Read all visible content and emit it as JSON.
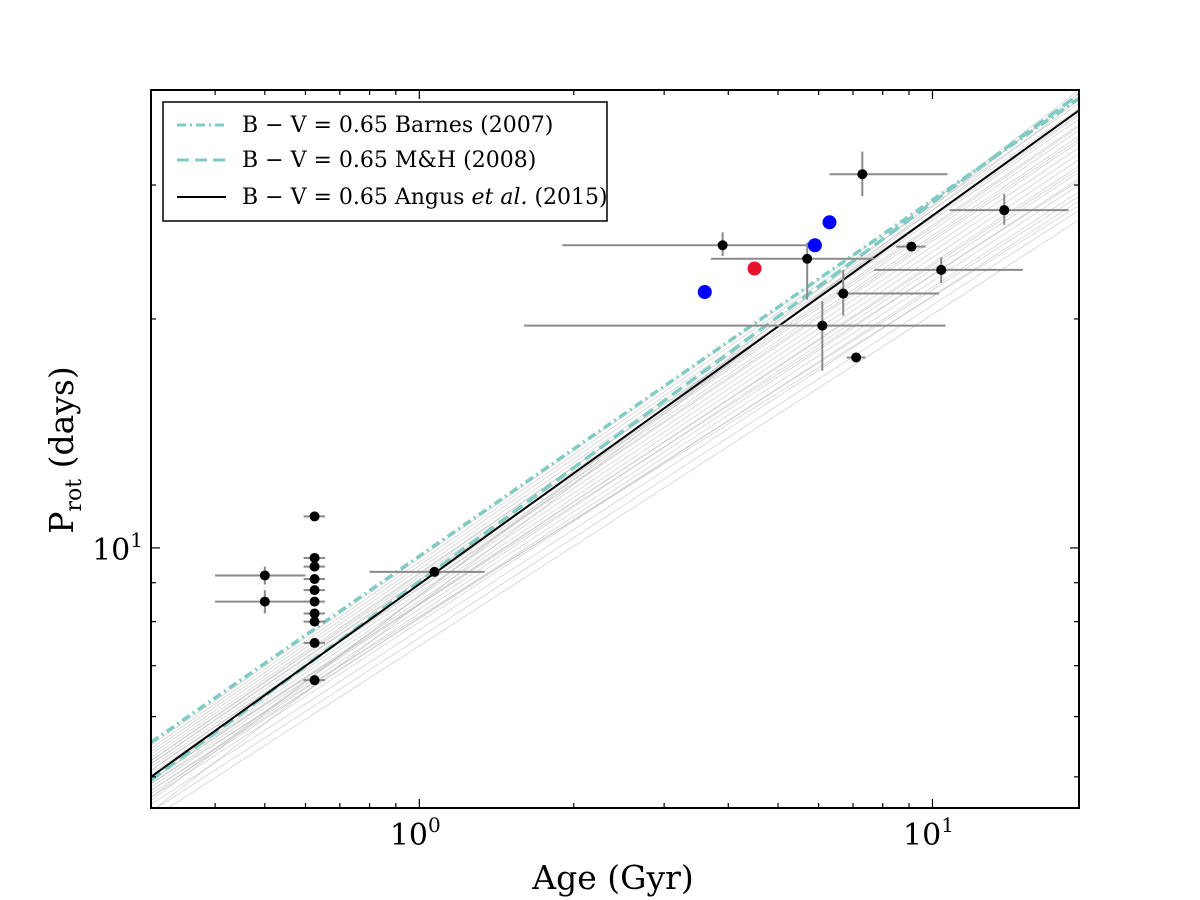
{
  "chart_data": {
    "type": "scatter",
    "title": "",
    "xlabel": "Age (Gyr)",
    "ylabel_main": "P",
    "ylabel_sub": "rot",
    "ylabel_tail": " (days)",
    "xscale": "log",
    "yscale": "log",
    "xlim": [
      0.3,
      19.3
    ],
    "ylim": [
      4.55,
      40.0
    ],
    "x_ticks": [
      {
        "value": 1,
        "base": "10",
        "exp": "0"
      },
      {
        "value": 10,
        "base": "10",
        "exp": "1"
      }
    ],
    "y_ticks": [
      {
        "value": 10,
        "base": "10",
        "exp": "1"
      }
    ],
    "grid": false,
    "legend": {
      "placement": "top-left",
      "entries": [
        {
          "text": "B − V = 0.65 Barnes (2007)",
          "style": "dashdot",
          "color": "#80cbc4"
        },
        {
          "text": "B − V = 0.65 M&H (2008)",
          "style": "dashed",
          "color": "#80cbc4"
        },
        {
          "text_pre": "B − V = 0.65 Angus ",
          "text_italic": "et al.",
          "text_post": " (2015)",
          "style": "solid",
          "color": "#000000"
        }
      ]
    },
    "lines": [
      {
        "name": "B − V = 0.65 Barnes (2007)",
        "style": "dashdot",
        "color": "#80cbc4",
        "points": [
          [
            0.3,
            5.55
          ],
          [
            19.3,
            39.0
          ]
        ]
      },
      {
        "name": "B − V = 0.65 M&H (2008)",
        "style": "dashed",
        "color": "#80cbc4",
        "points": [
          [
            0.3,
            4.95
          ],
          [
            19.3,
            39.5
          ]
        ]
      },
      {
        "name": "B − V = 0.65 Angus et al. (2015)",
        "style": "solid",
        "color": "#000000",
        "points": [
          [
            0.3,
            5.0
          ],
          [
            19.3,
            37.6
          ]
        ]
      }
    ],
    "sample_lines": {
      "color": "#b0b0b0",
      "x_range": [
        0.3,
        19.3
      ],
      "start_values": [
        4.4,
        4.5,
        4.6,
        4.7,
        4.75,
        4.8,
        4.85,
        4.9,
        4.95,
        5.0,
        5.05,
        5.1,
        5.15,
        5.2,
        5.25,
        5.3,
        5.35,
        5.4,
        5.45,
        5.5,
        4.5,
        4.65,
        4.8,
        4.95,
        5.1,
        5.25,
        4.7,
        4.9,
        5.0,
        5.2
      ],
      "end_values": [
        27.0,
        27.8,
        28.6,
        29.4,
        30.0,
        30.6,
        31.2,
        31.8,
        32.4,
        33.0,
        33.6,
        34.2,
        34.8,
        35.4,
        36.0,
        36.6,
        37.2,
        37.8,
        38.4,
        39.0,
        39.6,
        40.0,
        29.0,
        31.5,
        34.5,
        37.0,
        38.8,
        28.2,
        30.4,
        35.8
      ]
    },
    "points": [
      {
        "x": 0.5,
        "y": 9.2,
        "xerr": [
          0.1,
          0.1
        ],
        "yerr": [
          0.25,
          0.25
        ],
        "color": "#000000"
      },
      {
        "x": 0.5,
        "y": 8.5,
        "xerr": [
          0.1,
          0.1
        ],
        "yerr": [
          0.3,
          0.3
        ],
        "color": "#000000"
      },
      {
        "x": 0.625,
        "y": 11.0,
        "xerr": [
          0.03,
          0.03
        ],
        "yerr": [
          0,
          0
        ],
        "color": "#000000"
      },
      {
        "x": 0.625,
        "y": 9.7,
        "xerr": [
          0.03,
          0.03
        ],
        "yerr": [
          0,
          0
        ],
        "color": "#000000"
      },
      {
        "x": 0.625,
        "y": 9.45,
        "xerr": [
          0.03,
          0.03
        ],
        "yerr": [
          0,
          0
        ],
        "color": "#000000"
      },
      {
        "x": 0.625,
        "y": 9.1,
        "xerr": [
          0.03,
          0.03
        ],
        "yerr": [
          0,
          0
        ],
        "color": "#000000"
      },
      {
        "x": 0.625,
        "y": 8.8,
        "xerr": [
          0.03,
          0.03
        ],
        "yerr": [
          0,
          0
        ],
        "color": "#000000"
      },
      {
        "x": 0.625,
        "y": 8.5,
        "xerr": [
          0.03,
          0.03
        ],
        "yerr": [
          0,
          0
        ],
        "color": "#000000"
      },
      {
        "x": 0.625,
        "y": 8.2,
        "xerr": [
          0.03,
          0.03
        ],
        "yerr": [
          0,
          0
        ],
        "color": "#000000"
      },
      {
        "x": 0.625,
        "y": 8.0,
        "xerr": [
          0.03,
          0.03
        ],
        "yerr": [
          0,
          0
        ],
        "color": "#000000"
      },
      {
        "x": 0.625,
        "y": 7.5,
        "xerr": [
          0.03,
          0.03
        ],
        "yerr": [
          0,
          0
        ],
        "color": "#000000"
      },
      {
        "x": 0.625,
        "y": 6.7,
        "xerr": [
          0.03,
          0.03
        ],
        "yerr": [
          0,
          0
        ],
        "color": "#000000"
      },
      {
        "x": 1.07,
        "y": 9.3,
        "xerr": [
          0.27,
          0.27
        ],
        "yerr": [
          0,
          0
        ],
        "color": "#000000"
      },
      {
        "x": 3.9,
        "y": 25.0,
        "xerr": [
          2.0,
          2.0
        ],
        "yerr": [
          0.8,
          1.0
        ],
        "color": "#000000"
      },
      {
        "x": 5.7,
        "y": 24.0,
        "xerr": [
          2.0,
          2.0
        ],
        "yerr": [
          2.8,
          1.2
        ],
        "color": "#000000"
      },
      {
        "x": 7.3,
        "y": 31.0,
        "xerr": [
          1.0,
          3.4
        ],
        "yerr": [
          2.0,
          2.2
        ],
        "color": "#000000"
      },
      {
        "x": 6.1,
        "y": 19.6,
        "xerr": [
          4.5,
          4.5
        ],
        "yerr": [
          2.5,
          1.5
        ],
        "color": "#000000"
      },
      {
        "x": 6.7,
        "y": 21.6,
        "xerr": [
          0.2,
          3.6
        ],
        "yerr": [
          1.4,
          1.6
        ],
        "color": "#000000"
      },
      {
        "x": 7.1,
        "y": 17.8,
        "xerr": [
          0.3,
          0.3
        ],
        "yerr": [
          0,
          0
        ],
        "color": "#000000"
      },
      {
        "x": 9.1,
        "y": 24.9,
        "xerr": [
          0.6,
          0.6
        ],
        "yerr": [
          0,
          0
        ],
        "color": "#000000"
      },
      {
        "x": 10.4,
        "y": 23.2,
        "xerr": [
          2.7,
          4.6
        ],
        "yerr": [
          0.9,
          0.9
        ],
        "color": "#000000"
      },
      {
        "x": 13.8,
        "y": 27.8,
        "xerr": [
          3.0,
          4.6
        ],
        "yerr": [
          1.2,
          1.4
        ],
        "color": "#000000"
      },
      {
        "x": 3.6,
        "y": 21.7,
        "xerr": [
          0,
          0
        ],
        "yerr": [
          0,
          0
        ],
        "color": "#0000ff",
        "size": "large"
      },
      {
        "x": 4.5,
        "y": 23.3,
        "xerr": [
          0,
          0
        ],
        "yerr": [
          0,
          0
        ],
        "color": "#e8102a",
        "size": "large"
      },
      {
        "x": 5.9,
        "y": 25.0,
        "xerr": [
          0,
          0
        ],
        "yerr": [
          0,
          0
        ],
        "color": "#0000ff",
        "size": "large"
      },
      {
        "x": 6.3,
        "y": 26.8,
        "xerr": [
          0,
          0
        ],
        "yerr": [
          0,
          0
        ],
        "color": "#0000ff",
        "size": "large"
      }
    ]
  }
}
